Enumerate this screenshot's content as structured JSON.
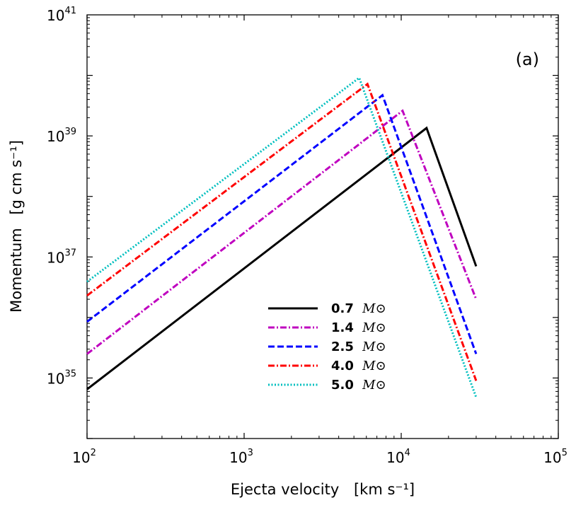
{
  "chart_data": {
    "type": "line",
    "panel_label": "(a)",
    "xlabel": "Ejecta velocity",
    "xlabel_unit": "[km s⁻¹]",
    "ylabel": "Momentum",
    "ylabel_unit": "[g cm s⁻¹]",
    "xscale": "log",
    "yscale": "log",
    "xlim": [
      100,
      100000
    ],
    "ylim": [
      1e+34,
      1e+41
    ],
    "x_ticks": [
      {
        "value": 100,
        "base": "10",
        "exp": "2"
      },
      {
        "value": 1000,
        "base": "10",
        "exp": "3"
      },
      {
        "value": 10000,
        "base": "10",
        "exp": "4"
      },
      {
        "value": 100000,
        "base": "10",
        "exp": "5"
      }
    ],
    "y_ticks": [
      {
        "value": 1e+35,
        "base": "10",
        "exp": "35"
      },
      {
        "value": 1e+37,
        "base": "10",
        "exp": "37"
      },
      {
        "value": 1e+39,
        "base": "10",
        "exp": "39"
      },
      {
        "value": 1e+41,
        "base": "10",
        "exp": "41"
      }
    ],
    "legend_unit": "M⊙",
    "series": [
      {
        "name": "0.7",
        "color": "#000000",
        "dash": "solid",
        "x": [
          100,
          14500,
          30000
        ],
        "y": [
          6.5e+34,
          1.35e+39,
          7e+36
        ]
      },
      {
        "name": "1.4",
        "color": "#bf00bf",
        "dash": "dashdot",
        "x": [
          100,
          10200,
          30000
        ],
        "y": [
          2.5e+35,
          2.6e+39,
          2e+36
        ]
      },
      {
        "name": "2.5",
        "color": "#0000ff",
        "dash": "dashed",
        "x": [
          100,
          7600,
          30000
        ],
        "y": [
          8.5e+35,
          4.7e+39,
          2.5e+35
        ]
      },
      {
        "name": "4.0",
        "color": "#ff0000",
        "dash": "dashdot",
        "x": [
          100,
          6100,
          30000
        ],
        "y": [
          2.3e+36,
          7.2e+39,
          9e+34
        ]
      },
      {
        "name": "5.0",
        "color": "#00bfbf",
        "dash": "dotted",
        "x": [
          100,
          5400,
          30000
        ],
        "y": [
          3.9e+36,
          9.1e+39,
          4.8e+34
        ]
      }
    ]
  }
}
